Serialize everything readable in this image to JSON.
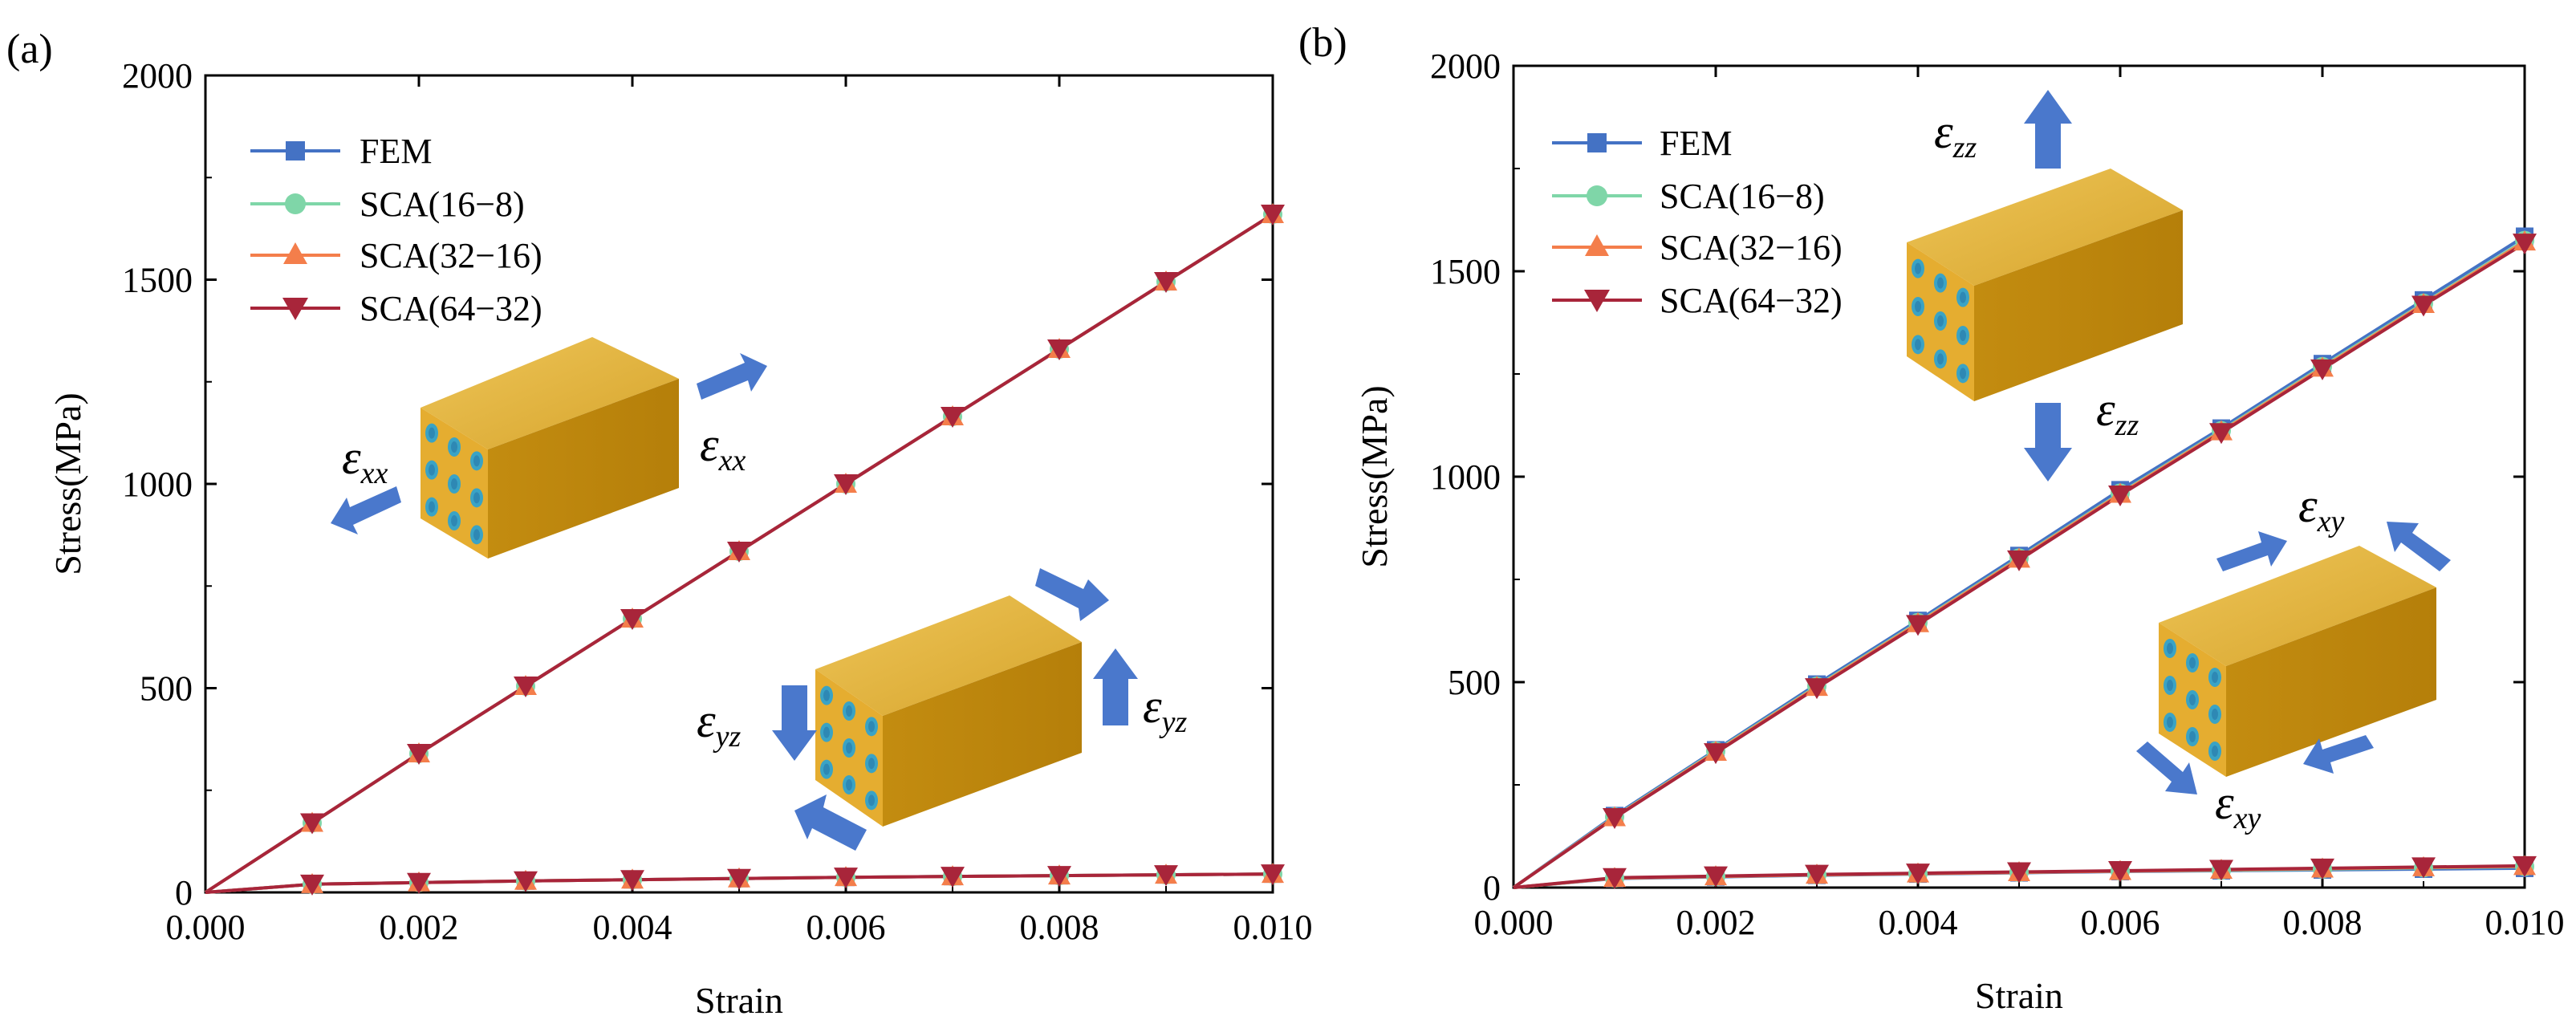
{
  "colors": {
    "fem": "#4472c4",
    "sca_16_8": "#7fd6a8",
    "sca_32_16": "#f47e4b",
    "sca_64_32": "#a8253a",
    "arrow": "#4a78cc",
    "cube_top": "#e3b33c",
    "cube_front": "#c8900e",
    "cube_side": "#d9a22a",
    "fiber": "#2e88b4",
    "fiber_ring": "#3aa3c5"
  },
  "chart_data": [
    {
      "type": "line",
      "panel_label": "(a)",
      "xlabel": "Strain",
      "ylabel": "Stress(MPa)",
      "xlim": [
        0,
        0.01
      ],
      "ylim": [
        0,
        2000
      ],
      "xticks": [
        "0.000",
        "0.002",
        "0.004",
        "0.006",
        "0.008",
        "0.010"
      ],
      "yticks": [
        "0",
        "500",
        "1000",
        "1500",
        "2000"
      ],
      "x": [
        0,
        0.001,
        0.002,
        0.003,
        0.004,
        0.005,
        0.006,
        0.007,
        0.008,
        0.009,
        0.01
      ],
      "legend": [
        "FEM",
        "SCA(16−8)",
        "SCA(32−16)",
        "SCA(64−32)"
      ],
      "curves": [
        {
          "case": "xx",
          "series": [
            {
              "name": "FEM",
              "values": [
                0,
                170,
                340,
                505,
                670,
                835,
                1000,
                1165,
                1330,
                1495,
                1660
              ]
            },
            {
              "name": "SCA(16−8)",
              "values": [
                0,
                170,
                340,
                505,
                670,
                835,
                1000,
                1165,
                1330,
                1495,
                1660
              ]
            },
            {
              "name": "SCA(32−16)",
              "values": [
                0,
                170,
                340,
                505,
                670,
                835,
                1000,
                1165,
                1330,
                1495,
                1660
              ]
            },
            {
              "name": "SCA(64−32)",
              "values": [
                0,
                170,
                340,
                505,
                670,
                835,
                1000,
                1165,
                1330,
                1495,
                1660
              ]
            }
          ]
        },
        {
          "case": "yz",
          "series": [
            {
              "name": "FEM",
              "values": [
                0,
                20,
                24,
                28,
                31,
                34,
                37,
                39,
                41,
                43,
                45
              ]
            },
            {
              "name": "SCA(16−8)",
              "values": [
                0,
                20,
                24,
                28,
                31,
                34,
                37,
                39,
                41,
                43,
                45
              ]
            },
            {
              "name": "SCA(32−16)",
              "values": [
                0,
                20,
                24,
                28,
                31,
                34,
                37,
                39,
                41,
                43,
                45
              ]
            },
            {
              "name": "SCA(64−32)",
              "values": [
                0,
                20,
                24,
                28,
                31,
                34,
                37,
                39,
                41,
                43,
                45
              ]
            }
          ]
        }
      ],
      "annotations": [
        {
          "symbol": "ε",
          "sub": "xx"
        },
        {
          "symbol": "ε",
          "sub": "xx"
        },
        {
          "symbol": "ε",
          "sub": "yz"
        },
        {
          "symbol": "ε",
          "sub": "yz"
        }
      ]
    },
    {
      "type": "line",
      "panel_label": "(b)",
      "xlabel": "Strain",
      "ylabel": "Stress(MPa)",
      "xlim": [
        0,
        0.01
      ],
      "ylim": [
        0,
        2000
      ],
      "xticks": [
        "0.000",
        "0.002",
        "0.004",
        "0.006",
        "0.008",
        "0.010"
      ],
      "yticks": [
        "0",
        "500",
        "1000",
        "1500",
        "2000"
      ],
      "x": [
        0,
        0.001,
        0.002,
        0.003,
        0.004,
        0.005,
        0.006,
        0.007,
        0.008,
        0.009,
        0.01
      ],
      "legend": [
        "FEM",
        "SCA(16−8)",
        "SCA(32−16)",
        "SCA(64−32)"
      ],
      "curves": [
        {
          "case": "zz",
          "series": [
            {
              "name": "FEM",
              "values": [
                0,
                175,
                335,
                495,
                650,
                808,
                968,
                1118,
                1275,
                1430,
                1585
              ]
            },
            {
              "name": "SCA(16−8)",
              "values": [
                0,
                172,
                332,
                490,
                645,
                802,
                960,
                1112,
                1268,
                1422,
                1575
              ]
            },
            {
              "name": "SCA(32−16)",
              "values": [
                0,
                171,
                330,
                488,
                643,
                800,
                958,
                1110,
                1265,
                1420,
                1572
              ]
            },
            {
              "name": "SCA(64−32)",
              "values": [
                0,
                170,
                328,
                486,
                640,
                797,
                955,
                1107,
                1262,
                1417,
                1568
              ]
            }
          ]
        },
        {
          "case": "xy",
          "series": [
            {
              "name": "FEM",
              "values": [
                0,
                22,
                26,
                30,
                33,
                36,
                39,
                41,
                43,
                45,
                47
              ]
            },
            {
              "name": "SCA(16−8)",
              "values": [
                0,
                23,
                27,
                31,
                34,
                37,
                40,
                42,
                45,
                48,
                51
              ]
            },
            {
              "name": "SCA(32−16)",
              "values": [
                0,
                23,
                27,
                31,
                34,
                37,
                40,
                43,
                46,
                49,
                52
              ]
            },
            {
              "name": "SCA(64−32)",
              "values": [
                0,
                24,
                28,
                32,
                35,
                38,
                41,
                44,
                47,
                50,
                53
              ]
            }
          ]
        }
      ],
      "annotations": [
        {
          "symbol": "ε",
          "sub": "zz"
        },
        {
          "symbol": "ε",
          "sub": "zz"
        },
        {
          "symbol": "ε",
          "sub": "xy"
        },
        {
          "symbol": "ε",
          "sub": "xy"
        }
      ]
    }
  ]
}
